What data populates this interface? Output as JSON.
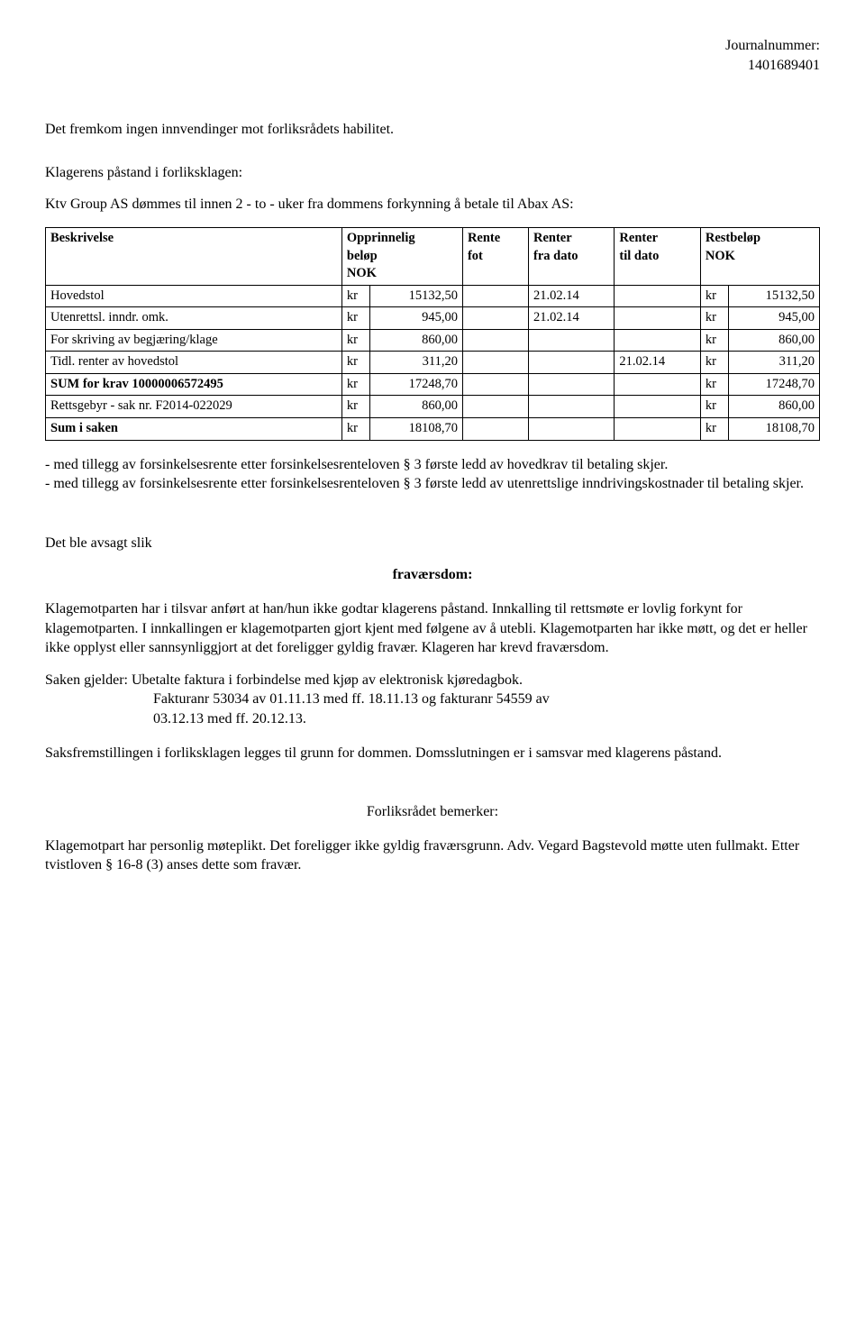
{
  "header": {
    "journal_label": "Journalnummer:",
    "journal_number": "1401689401"
  },
  "intro": {
    "line1": "Det fremkom ingen innvendinger mot forliksrådets habilitet.",
    "line2": "Klagerens påstand i forliksklagen:",
    "line3": "Ktv Group AS dømmes til innen 2 - to - uker fra dommens forkynning å betale til Abax AS:"
  },
  "table": {
    "columns": {
      "c1": "Beskrivelse",
      "c2a": "Opprinnelig",
      "c2b": "beløp",
      "c2c": "NOK",
      "c3a": "Rente",
      "c3b": "fot",
      "c4a": "Renter",
      "c4b": "fra dato",
      "c5a": "Renter",
      "c5b": "til dato",
      "c6a": "Restbeløp",
      "c6b": "NOK"
    },
    "rows": [
      {
        "desc": "Hovedstol",
        "kr1": "kr",
        "amt1": "15132,50",
        "rate": "",
        "from": "21.02.14",
        "to": "",
        "kr2": "kr",
        "amt2": "15132,50"
      },
      {
        "desc": "Utenrettsl. inndr. omk.",
        "kr1": "kr",
        "amt1": "945,00",
        "rate": "",
        "from": "21.02.14",
        "to": "",
        "kr2": "kr",
        "amt2": "945,00"
      },
      {
        "desc": "For skriving av begjæring/klage",
        "kr1": "kr",
        "amt1": "860,00",
        "rate": "",
        "from": "",
        "to": "",
        "kr2": "kr",
        "amt2": "860,00"
      },
      {
        "desc": "Tidl. renter av hovedstol",
        "kr1": "kr",
        "amt1": "311,20",
        "rate": "",
        "from": "",
        "to": "21.02.14",
        "kr2": "kr",
        "amt2": "311,20"
      },
      {
        "desc": "SUM for krav 10000006572495",
        "kr1": "kr",
        "amt1": "17248,70",
        "rate": "",
        "from": "",
        "to": "",
        "kr2": "kr",
        "amt2": "17248,70",
        "bold": true
      },
      {
        "desc": "Rettsgebyr - sak nr. F2014-022029",
        "kr1": "kr",
        "amt1": "860,00",
        "rate": "",
        "from": "",
        "to": "",
        "kr2": "kr",
        "amt2": "860,00"
      },
      {
        "desc": "Sum i saken",
        "kr1": "kr",
        "amt1": "18108,70",
        "rate": "",
        "from": "",
        "to": "",
        "kr2": "kr",
        "amt2": "18108,70",
        "bold": true
      }
    ]
  },
  "after_table": {
    "p1": "- med tillegg av forsinkelsesrente etter forsinkelsesrenteloven § 3 første ledd av hovedkrav til betaling skjer.",
    "p2": "- med tillegg av forsinkelsesrente etter forsinkelsesrenteloven § 3 første ledd av utenrettslige inndrivingskostnader til betaling skjer."
  },
  "judgment": {
    "lead": "Det ble avsagt slik",
    "heading": "fraværsdom:",
    "para1": "Klagemotparten har i tilsvar anført at han/hun ikke godtar klagerens påstand. Innkalling til rettsmøte er lovlig forkynt for klagemotparten. I innkallingen er klagemotparten gjort kjent med følgene av å utebli. Klagemotparten har ikke møtt, og det er heller ikke opplyst eller sannsynliggjort at det foreligger gyldig fravær. Klageren har krevd fraværsdom.",
    "para2_lead": "Saken gjelder: Ubetalte faktura i forbindelse med kjøp av elektronisk kjøredagbok.",
    "para2_indent1": "Fakturanr 53034 av 01.11.13 med ff. 18.11.13 og fakturanr 54559 av",
    "para2_indent2": "03.12.13 med ff. 20.12.13.",
    "para3": "Saksfremstillingen i forliksklagen legges til grunn for dommen. Domsslutningen er i samsvar med klagerens påstand."
  },
  "remarks": {
    "heading": "Forliksrådet bemerker:",
    "para": "Klagemotpart har personlig møteplikt. Det foreligger ikke gyldig fraværsgrunn. Adv. Vegard Bagstevold møtte uten fullmakt. Etter tvistloven § 16-8 (3) anses dette som fravær."
  }
}
